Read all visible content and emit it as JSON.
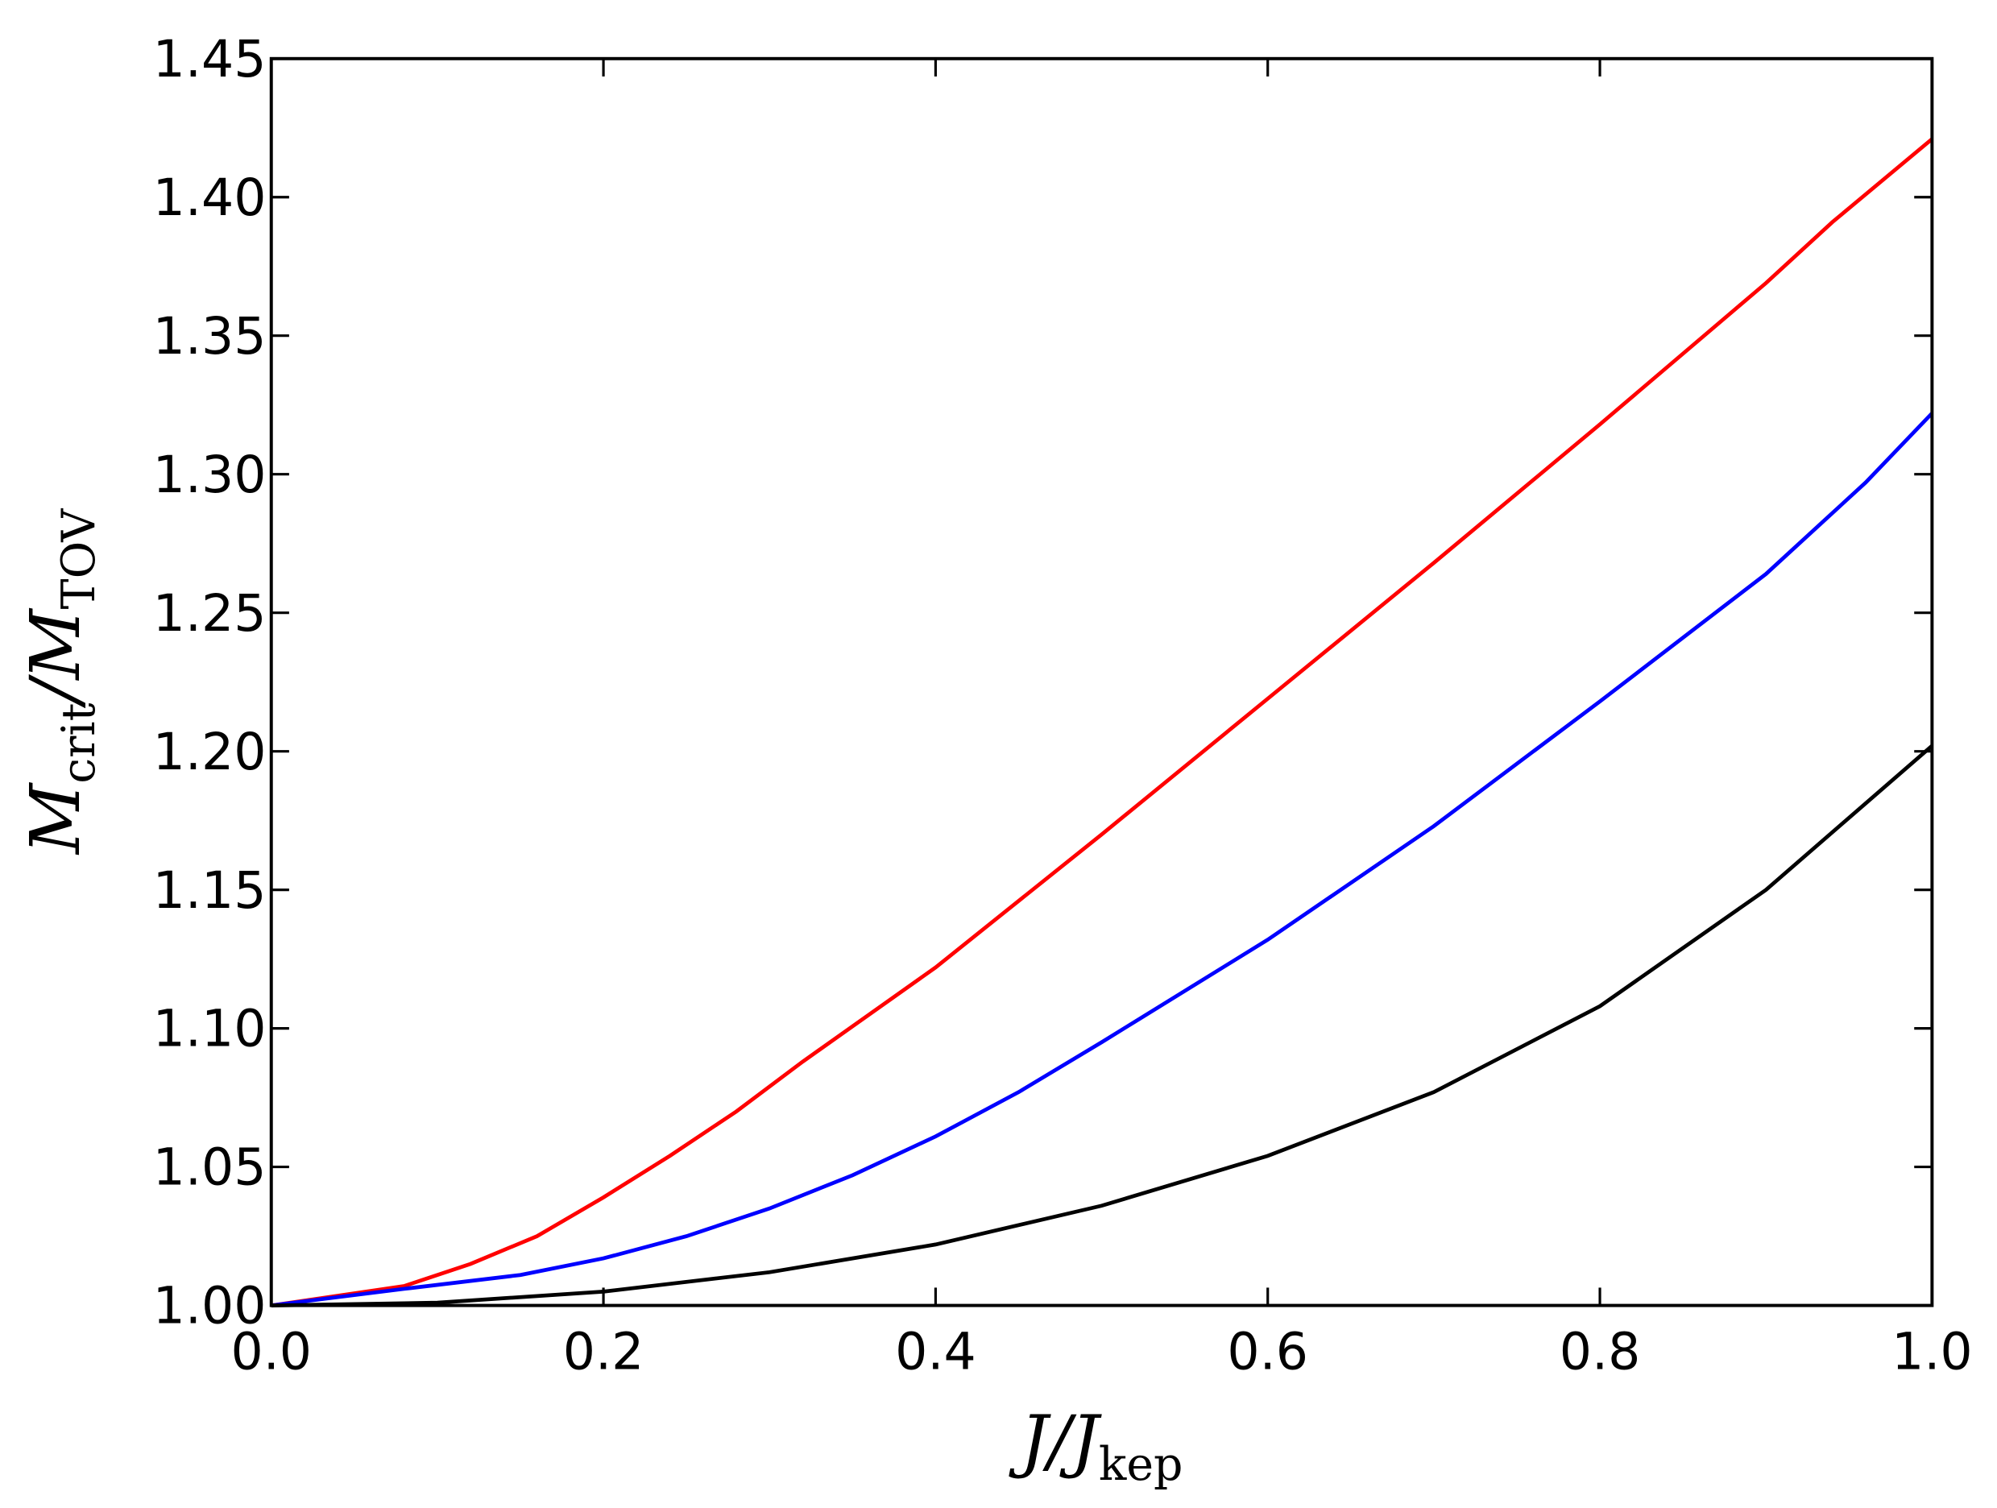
{
  "chart_data": {
    "type": "line",
    "xlabel": {
      "main": "J/J",
      "sub": "kep"
    },
    "ylabel": {
      "main1": "M",
      "sub1": "crit",
      "main2": "/M",
      "sub2": "TOV"
    },
    "xlim": [
      0,
      1
    ],
    "ylim": [
      1.0,
      1.45
    ],
    "xticks": [
      {
        "value": 0,
        "label": "0.0"
      },
      0.2,
      0.4,
      0.6,
      0.8,
      {
        "value": 1,
        "label": "1.0"
      }
    ],
    "yticks": [
      {
        "value": 1.0,
        "label": "1.00"
      },
      {
        "value": 1.05,
        "label": "1.05"
      },
      {
        "value": 1.1,
        "label": "1.10"
      },
      {
        "value": 1.15,
        "label": "1.15"
      },
      {
        "value": 1.2,
        "label": "1.20"
      },
      {
        "value": 1.25,
        "label": "1.25"
      },
      {
        "value": 1.3,
        "label": "1.30"
      },
      {
        "value": 1.35,
        "label": "1.35"
      },
      {
        "value": 1.4,
        "label": "1.40"
      },
      {
        "value": 1.45,
        "label": "1.45"
      }
    ],
    "grid": false,
    "series": [
      {
        "color": "#ff0000",
        "x": [
          0,
          0.08,
          0.12,
          0.16,
          0.2,
          0.24,
          0.28,
          0.32,
          0.36,
          0.4,
          0.5,
          0.6,
          0.7,
          0.8,
          0.9,
          0.94,
          1.0
        ],
        "values": [
          1.0,
          1.007,
          1.015,
          1.025,
          1.039,
          1.054,
          1.07,
          1.088,
          1.105,
          1.122,
          1.17,
          1.219,
          1.268,
          1.318,
          1.369,
          1.391,
          1.421
        ]
      },
      {
        "color": "#0000ff",
        "x": [
          0,
          0.08,
          0.15,
          0.2,
          0.25,
          0.3,
          0.35,
          0.4,
          0.45,
          0.5,
          0.6,
          0.7,
          0.8,
          0.9,
          0.96,
          1.0
        ],
        "values": [
          1.0,
          1.006,
          1.011,
          1.017,
          1.025,
          1.035,
          1.047,
          1.061,
          1.077,
          1.095,
          1.132,
          1.173,
          1.218,
          1.264,
          1.297,
          1.322
        ]
      },
      {
        "color": "#000000",
        "x": [
          0,
          0.1,
          0.2,
          0.3,
          0.4,
          0.5,
          0.6,
          0.7,
          0.8,
          0.9,
          1.0
        ],
        "values": [
          1.0,
          1.001,
          1.005,
          1.012,
          1.022,
          1.036,
          1.054,
          1.077,
          1.108,
          1.15,
          1.202
        ]
      }
    ]
  }
}
